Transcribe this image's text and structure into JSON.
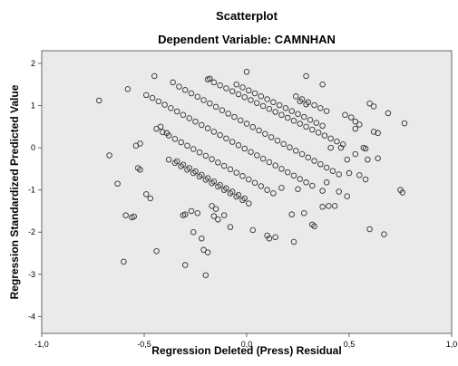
{
  "chart_data": {
    "type": "scatter",
    "title": "Scatterplot",
    "subtitle": "Dependent Variable: CAMNHAN",
    "xlabel": "Regression Deleted (Press) Residual",
    "ylabel": "Regression Standardized Predicted Value",
    "xlim": [
      -1.0,
      1.0
    ],
    "ylim": [
      -4.4,
      2.3
    ],
    "xticks": [
      -1.0,
      -0.5,
      0.0,
      0.5,
      1.0
    ],
    "xtick_labels": [
      "-1,0",
      "-0,5",
      "0,0",
      "0,5",
      "1,0"
    ],
    "yticks": [
      -4,
      -3,
      -2,
      -1,
      0,
      1,
      2
    ],
    "ytick_labels": [
      "-4",
      "-3",
      "-2",
      "-1",
      "0",
      "1",
      "2"
    ],
    "grid": false,
    "colors": {
      "plot_background": "#eaeaea",
      "marker": "#333333"
    },
    "points": [
      [
        -0.72,
        1.12
      ],
      [
        -0.58,
        1.39
      ],
      [
        -0.45,
        1.7
      ],
      [
        -0.36,
        1.55
      ],
      [
        -0.18,
        1.64
      ],
      [
        0.0,
        1.8
      ],
      [
        0.29,
        1.7
      ],
      [
        0.37,
        1.5
      ],
      [
        -0.67,
        -0.18
      ],
      [
        -0.63,
        -0.85
      ],
      [
        -0.59,
        -1.6
      ],
      [
        -0.55,
        -1.63
      ],
      [
        -0.56,
        -1.65
      ],
      [
        -0.49,
        -1.1
      ],
      [
        -0.47,
        -1.2
      ],
      [
        -0.44,
        -2.45
      ],
      [
        -0.6,
        -2.7
      ],
      [
        -0.52,
        0.1
      ],
      [
        -0.54,
        0.05
      ],
      [
        -0.53,
        -0.48
      ],
      [
        -0.52,
        -0.52
      ],
      [
        -0.42,
        0.5
      ],
      [
        -0.39,
        0.35
      ],
      [
        -0.31,
        -1.6
      ],
      [
        -0.3,
        -1.58
      ],
      [
        -0.26,
        -2.0
      ],
      [
        -0.22,
        -2.15
      ],
      [
        -0.3,
        -2.78
      ],
      [
        -0.21,
        -2.42
      ],
      [
        -0.19,
        -2.48
      ],
      [
        -0.2,
        -3.02
      ],
      [
        -0.17,
        -1.38
      ],
      [
        -0.15,
        -1.45
      ],
      [
        -0.11,
        -1.6
      ],
      [
        -0.08,
        -1.88
      ],
      [
        0.03,
        -1.95
      ],
      [
        0.1,
        -2.08
      ],
      [
        0.11,
        -2.15
      ],
      [
        0.14,
        -2.12
      ],
      [
        0.22,
        -1.58
      ],
      [
        0.28,
        -1.55
      ],
      [
        0.32,
        -1.82
      ],
      [
        0.33,
        -1.86
      ],
      [
        0.23,
        -2.23
      ],
      [
        0.37,
        -1.4
      ],
      [
        0.4,
        -1.38
      ],
      [
        0.43,
        -1.38
      ],
      [
        0.17,
        -0.95
      ],
      [
        0.25,
        -0.98
      ],
      [
        0.37,
        -1.02
      ],
      [
        0.39,
        -0.82
      ],
      [
        0.45,
        -1.04
      ],
      [
        0.49,
        -1.15
      ],
      [
        0.5,
        -0.6
      ],
      [
        0.55,
        -0.65
      ],
      [
        0.49,
        -0.28
      ],
      [
        0.53,
        -0.15
      ],
      [
        0.59,
        -0.28
      ],
      [
        0.58,
        -0.75
      ],
      [
        0.64,
        -0.25
      ],
      [
        0.62,
        0.38
      ],
      [
        0.64,
        0.35
      ],
      [
        0.69,
        0.82
      ],
      [
        0.77,
        0.58
      ],
      [
        0.6,
        1.05
      ],
      [
        0.62,
        0.98
      ],
      [
        0.53,
        0.62
      ],
      [
        0.55,
        0.55
      ],
      [
        0.57,
        0.0
      ],
      [
        0.58,
        -0.02
      ],
      [
        0.6,
        -1.93
      ],
      [
        0.67,
        -2.05
      ],
      [
        0.75,
        -1.0
      ],
      [
        0.76,
        -1.06
      ],
      [
        0.41,
        0.0
      ],
      [
        0.46,
        0.0
      ],
      [
        0.48,
        0.78
      ],
      [
        0.51,
        0.72
      ],
      [
        0.53,
        0.45
      ],
      [
        -0.49,
        1.25
      ],
      [
        -0.46,
        1.18
      ],
      [
        -0.43,
        1.1
      ],
      [
        -0.4,
        1.02
      ],
      [
        -0.37,
        0.94
      ],
      [
        -0.34,
        0.86
      ],
      [
        -0.31,
        0.78
      ],
      [
        -0.28,
        0.7
      ],
      [
        -0.25,
        0.62
      ],
      [
        -0.22,
        0.54
      ],
      [
        -0.19,
        0.46
      ],
      [
        -0.16,
        0.38
      ],
      [
        -0.13,
        0.3
      ],
      [
        -0.1,
        0.22
      ],
      [
        -0.07,
        0.14
      ],
      [
        -0.04,
        0.06
      ],
      [
        -0.01,
        -0.02
      ],
      [
        0.02,
        -0.1
      ],
      [
        0.05,
        -0.18
      ],
      [
        0.08,
        -0.26
      ],
      [
        0.11,
        -0.34
      ],
      [
        0.14,
        -0.42
      ],
      [
        0.17,
        -0.5
      ],
      [
        0.2,
        -0.58
      ],
      [
        0.23,
        -0.66
      ],
      [
        0.26,
        -0.74
      ],
      [
        0.29,
        -0.82
      ],
      [
        0.32,
        -0.9
      ],
      [
        -0.33,
        1.45
      ],
      [
        -0.3,
        1.37
      ],
      [
        -0.27,
        1.29
      ],
      [
        -0.24,
        1.21
      ],
      [
        -0.21,
        1.13
      ],
      [
        -0.18,
        1.05
      ],
      [
        -0.15,
        0.97
      ],
      [
        -0.12,
        0.89
      ],
      [
        -0.09,
        0.81
      ],
      [
        -0.06,
        0.73
      ],
      [
        -0.03,
        0.65
      ],
      [
        0.0,
        0.57
      ],
      [
        0.03,
        0.49
      ],
      [
        0.06,
        0.41
      ],
      [
        0.09,
        0.33
      ],
      [
        0.12,
        0.25
      ],
      [
        0.15,
        0.17
      ],
      [
        0.18,
        0.09
      ],
      [
        0.21,
        0.01
      ],
      [
        0.24,
        -0.07
      ],
      [
        0.27,
        -0.15
      ],
      [
        0.3,
        -0.23
      ],
      [
        0.33,
        -0.31
      ],
      [
        0.36,
        -0.39
      ],
      [
        0.39,
        -0.47
      ],
      [
        0.42,
        -0.55
      ],
      [
        0.45,
        -0.63
      ],
      [
        -0.19,
        1.62
      ],
      [
        -0.16,
        1.55
      ],
      [
        -0.13,
        1.48
      ],
      [
        -0.1,
        1.41
      ],
      [
        -0.07,
        1.34
      ],
      [
        -0.04,
        1.27
      ],
      [
        -0.01,
        1.2
      ],
      [
        0.02,
        1.13
      ],
      [
        0.05,
        1.06
      ],
      [
        0.08,
        0.99
      ],
      [
        0.11,
        0.92
      ],
      [
        0.14,
        0.85
      ],
      [
        0.17,
        0.78
      ],
      [
        0.2,
        0.71
      ],
      [
        0.23,
        0.64
      ],
      [
        0.26,
        0.57
      ],
      [
        0.29,
        0.5
      ],
      [
        0.32,
        0.43
      ],
      [
        0.35,
        0.36
      ],
      [
        0.38,
        0.29
      ],
      [
        0.41,
        0.22
      ],
      [
        0.44,
        0.15
      ],
      [
        0.47,
        0.08
      ],
      [
        -0.05,
        1.5
      ],
      [
        -0.02,
        1.43
      ],
      [
        0.01,
        1.36
      ],
      [
        0.04,
        1.29
      ],
      [
        0.07,
        1.22
      ],
      [
        0.1,
        1.15
      ],
      [
        0.13,
        1.08
      ],
      [
        0.16,
        1.01
      ],
      [
        0.19,
        0.94
      ],
      [
        0.22,
        0.87
      ],
      [
        0.25,
        0.8
      ],
      [
        0.28,
        0.73
      ],
      [
        0.31,
        0.66
      ],
      [
        0.34,
        0.59
      ],
      [
        0.37,
        0.52
      ],
      [
        0.24,
        1.22
      ],
      [
        0.27,
        1.15
      ],
      [
        0.3,
        1.08
      ],
      [
        0.33,
        1.01
      ],
      [
        0.36,
        0.94
      ],
      [
        0.39,
        0.87
      ],
      [
        0.26,
        1.1
      ],
      [
        0.29,
        1.03
      ],
      [
        -0.44,
        0.45
      ],
      [
        -0.41,
        0.37
      ],
      [
        -0.38,
        0.29
      ],
      [
        -0.35,
        0.21
      ],
      [
        -0.32,
        0.13
      ],
      [
        -0.29,
        0.05
      ],
      [
        -0.26,
        -0.03
      ],
      [
        -0.23,
        -0.11
      ],
      [
        -0.2,
        -0.19
      ],
      [
        -0.17,
        -0.27
      ],
      [
        -0.14,
        -0.35
      ],
      [
        -0.11,
        -0.43
      ],
      [
        -0.08,
        -0.51
      ],
      [
        -0.05,
        -0.59
      ],
      [
        -0.02,
        -0.67
      ],
      [
        0.01,
        -0.75
      ],
      [
        0.04,
        -0.83
      ],
      [
        0.07,
        -0.91
      ],
      [
        0.1,
        -1.0
      ],
      [
        0.13,
        -1.08
      ],
      [
        -0.38,
        -0.28
      ],
      [
        -0.35,
        -0.36
      ],
      [
        -0.32,
        -0.44
      ],
      [
        -0.29,
        -0.52
      ],
      [
        -0.26,
        -0.6
      ],
      [
        -0.23,
        -0.68
      ],
      [
        -0.2,
        -0.76
      ],
      [
        -0.17,
        -0.84
      ],
      [
        -0.14,
        -0.92
      ],
      [
        -0.11,
        -1.0
      ],
      [
        -0.08,
        -1.08
      ],
      [
        -0.05,
        -1.16
      ],
      [
        -0.02,
        -1.24
      ],
      [
        0.01,
        -1.32
      ],
      [
        -0.34,
        -0.32
      ],
      [
        -0.31,
        -0.4
      ],
      [
        -0.28,
        -0.48
      ],
      [
        -0.25,
        -0.56
      ],
      [
        -0.22,
        -0.64
      ],
      [
        -0.19,
        -0.72
      ],
      [
        -0.16,
        -0.8
      ],
      [
        -0.13,
        -0.88
      ],
      [
        -0.1,
        -0.96
      ],
      [
        -0.07,
        -1.04
      ],
      [
        -0.04,
        -1.12
      ],
      [
        -0.01,
        -1.2
      ],
      [
        -0.27,
        -1.5
      ],
      [
        -0.24,
        -1.55
      ],
      [
        -0.16,
        -1.62
      ],
      [
        -0.14,
        -1.7
      ]
    ]
  }
}
